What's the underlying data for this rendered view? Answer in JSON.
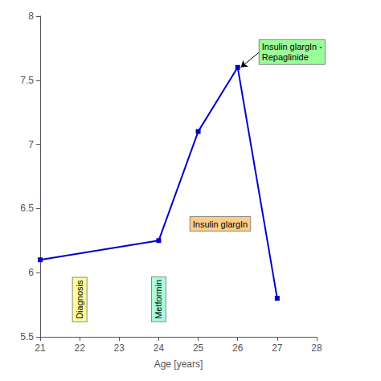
{
  "chart_data": {
    "type": "line",
    "x": [
      21,
      24,
      25,
      26,
      27
    ],
    "values": [
      6.1,
      6.25,
      7.1,
      7.6,
      5.8
    ],
    "color": "#0000CC",
    "marker": "square",
    "xlabel": "Age [years]",
    "xlim": [
      21,
      28
    ],
    "ylim": [
      5.5,
      8.0
    ],
    "xticks": [
      21,
      22,
      23,
      24,
      25,
      26,
      27,
      28
    ],
    "yticks": [
      5.5,
      6.0,
      6.5,
      7.0,
      7.5,
      8.0
    ],
    "grid": false,
    "annotations": [
      {
        "text": "Diagnosis",
        "x": 22.0,
        "y": 5.62,
        "color": "#FFFF99",
        "orientation": "vertical"
      },
      {
        "text": "Metformin",
        "x": 24.0,
        "y": 5.62,
        "color": "#AAFFDD",
        "orientation": "vertical"
      },
      {
        "text": "Insulin glargIn",
        "x": 24.8,
        "y": 6.38,
        "color": "#FFCC88",
        "orientation": "horizontal"
      },
      {
        "text": "Insulin glargIn -\nRepaglinide",
        "x": 26.55,
        "y": 7.72,
        "color": "#99FF99",
        "orientation": "horizontal",
        "arrow_to": [
          26.08,
          7.6
        ]
      }
    ]
  }
}
